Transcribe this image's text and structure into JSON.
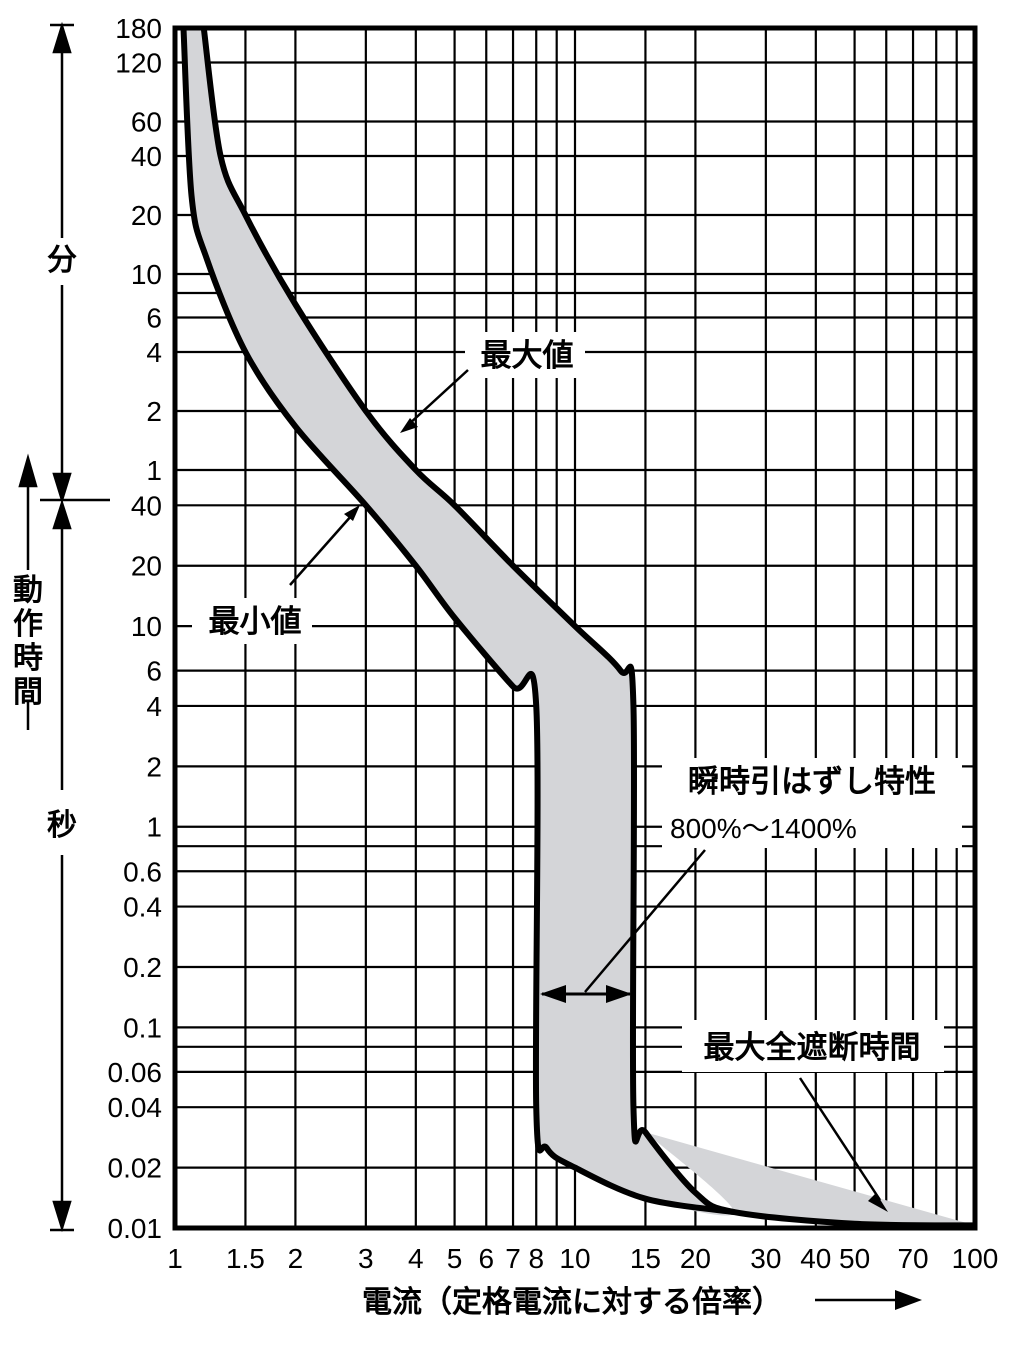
{
  "chart_data": {
    "type": "area",
    "title": "",
    "xlabel": "電流（定格電流に対する倍率）",
    "x_scale": "log",
    "y_scale": "log",
    "xlim": [
      1,
      100
    ],
    "x_ticks": [
      "1",
      "1.5",
      "2",
      "3",
      "4",
      "5",
      "6",
      "7",
      "8",
      "10",
      "15",
      "20",
      "30",
      "40",
      "50",
      "70",
      "100"
    ],
    "y_units_minutes_label": "分",
    "y_units_seconds_label": "秒",
    "y_axis_label": "動作時間",
    "y_ticks_minutes": [
      "180",
      "120",
      "60",
      "40",
      "20",
      "10",
      "6",
      "4",
      "2",
      "1"
    ],
    "y_ticks_seconds": [
      "40",
      "20",
      "10",
      "6",
      "4",
      "2",
      "1",
      "0.6",
      "0.4",
      "0.2",
      "0.1",
      "0.06",
      "0.04",
      "0.02",
      "0.01"
    ],
    "ylim_seconds": [
      0.01,
      10800
    ],
    "grid": true,
    "series": [
      {
        "name": "最大値",
        "x": [
          1.18,
          1.3,
          1.5,
          2,
          3,
          4,
          5,
          7,
          10,
          13,
          14,
          14,
          15,
          20,
          25,
          50,
          100
        ],
        "y_seconds": [
          10800,
          2400,
          1200,
          420,
          120,
          60,
          40,
          20,
          10,
          6,
          4,
          0.04,
          0.03,
          0.015,
          0.012,
          0.0105,
          0.0103
        ]
      },
      {
        "name": "最小値",
        "x": [
          1.05,
          1.1,
          1.2,
          1.5,
          2,
          3,
          4,
          5,
          7,
          8,
          8,
          8.5,
          10,
          15,
          25
        ],
        "y_seconds": [
          10800,
          1500,
          720,
          240,
          100,
          40,
          20,
          11,
          5,
          4,
          0.04,
          0.025,
          0.02,
          0.014,
          0.012
        ]
      }
    ],
    "annotations": {
      "max_label": "最大値",
      "min_label": "最小値",
      "instant_label": "瞬時引はずし特性",
      "instant_range": "800%〜1400%",
      "total_break_label": "最大全遮断時間"
    }
  }
}
